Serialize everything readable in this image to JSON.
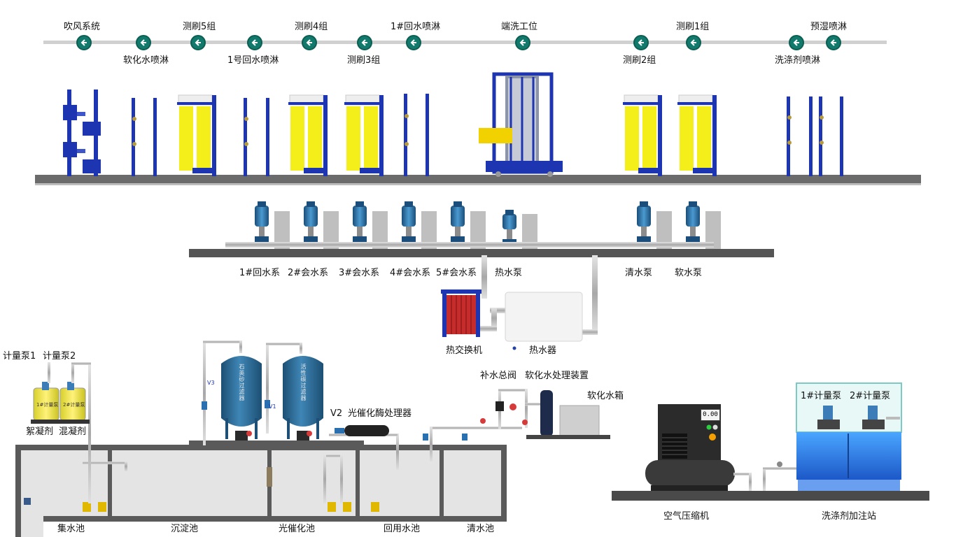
{
  "stations": [
    {
      "id": "blow",
      "label": "吹风系统"
    },
    {
      "id": "soft_spray",
      "label": "软化水喷淋"
    },
    {
      "id": "brush5",
      "label": "测刷5组"
    },
    {
      "id": "return1_spray",
      "label": "1号回水喷淋"
    },
    {
      "id": "brush4",
      "label": "测刷4组"
    },
    {
      "id": "brush3",
      "label": "测刷3组"
    },
    {
      "id": "return1_spray_b",
      "label": "1#回水喷淋"
    },
    {
      "id": "end_wash",
      "label": "端洗工位"
    },
    {
      "id": "brush2",
      "label": "测刷2组"
    },
    {
      "id": "brush1",
      "label": "测刷1组"
    },
    {
      "id": "detergent_spray",
      "label": "洗涤剂喷淋"
    },
    {
      "id": "prewet",
      "label": "预湿喷淋"
    }
  ],
  "pumps": [
    {
      "label": "1#回水系"
    },
    {
      "label": "2#会水系"
    },
    {
      "label": "3#会水系"
    },
    {
      "label": "4#会水系"
    },
    {
      "label": "5#会水系"
    },
    {
      "label": "热水泵"
    },
    {
      "label": "清水泵"
    },
    {
      "label": "软水泵"
    }
  ],
  "equipment": {
    "heat_exchanger": "热交换机",
    "water_heater": "热水器",
    "makeup_valve": "补水总阀",
    "softener": "软化水处理装置",
    "soft_tank": "软化水箱",
    "meter_pump1": "计量泵1",
    "meter_pump2": "计量泵2",
    "flocculant": "絮凝剂",
    "coagulant": "混凝剂",
    "valve_v2": "V2",
    "photocatalytic": "光催化酶处理器",
    "air_compressor": "空气压缩机",
    "compressor_display": "0.00",
    "detergent_station": "洗涤剂加注站",
    "det_pump1": "1#计量泵",
    "det_pump2": "2#计量泵",
    "tank1_text": "石英砂过滤器",
    "tank2_text": "活性碳过滤器",
    "can1_text": "1#计量泵",
    "can2_text": "2#计量泵",
    "v3": "V3",
    "v1": "V1"
  },
  "pools": [
    {
      "label": "集水池"
    },
    {
      "label": "沉淀池"
    },
    {
      "label": "光催化池"
    },
    {
      "label": "回用水池"
    },
    {
      "label": "清水池"
    }
  ],
  "colors": {
    "station_button": "#127a6c",
    "frame_blue": "#1d35b0",
    "brush_yellow": "#f4ee1a",
    "pipe": "#b9b9b9",
    "tank_blue": "#2e6f9a",
    "detergent_blue": "#2f7fe0"
  }
}
